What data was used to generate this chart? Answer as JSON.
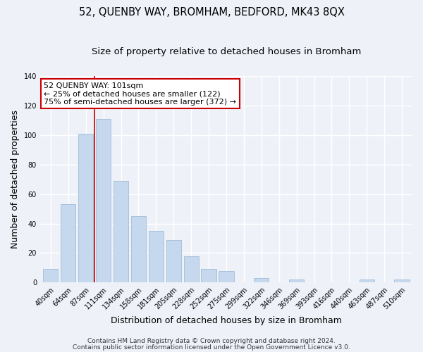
{
  "title": "52, QUENBY WAY, BROMHAM, BEDFORD, MK43 8QX",
  "subtitle": "Size of property relative to detached houses in Bromham",
  "xlabel": "Distribution of detached houses by size in Bromham",
  "ylabel": "Number of detached properties",
  "bar_color": "#c5d8ed",
  "bar_edge_color": "#a0bdd8",
  "categories": [
    "40sqm",
    "64sqm",
    "87sqm",
    "111sqm",
    "134sqm",
    "158sqm",
    "181sqm",
    "205sqm",
    "228sqm",
    "252sqm",
    "275sqm",
    "299sqm",
    "322sqm",
    "346sqm",
    "369sqm",
    "393sqm",
    "416sqm",
    "440sqm",
    "463sqm",
    "487sqm",
    "510sqm"
  ],
  "values": [
    9,
    53,
    101,
    111,
    69,
    45,
    35,
    29,
    18,
    9,
    8,
    0,
    3,
    0,
    2,
    0,
    0,
    0,
    2,
    0,
    2
  ],
  "ylim": [
    0,
    140
  ],
  "yticks": [
    0,
    20,
    40,
    60,
    80,
    100,
    120,
    140
  ],
  "vertical_line_x": 2.5,
  "annotation_box_text": "52 QUENBY WAY: 101sqm\n← 25% of detached houses are smaller (122)\n75% of semi-detached houses are larger (372) →",
  "annotation_box_color": "#ffffff",
  "annotation_box_edge_color": "#cc0000",
  "vertical_line_color": "#cc0000",
  "footer_line1": "Contains HM Land Registry data © Crown copyright and database right 2024.",
  "footer_line2": "Contains public sector information licensed under the Open Government Licence v3.0.",
  "background_color": "#eef2f8",
  "grid_color": "#ffffff",
  "title_fontsize": 10.5,
  "subtitle_fontsize": 9.5,
  "axis_label_fontsize": 9,
  "tick_fontsize": 7,
  "footer_fontsize": 6.5,
  "annotation_fontsize": 8
}
